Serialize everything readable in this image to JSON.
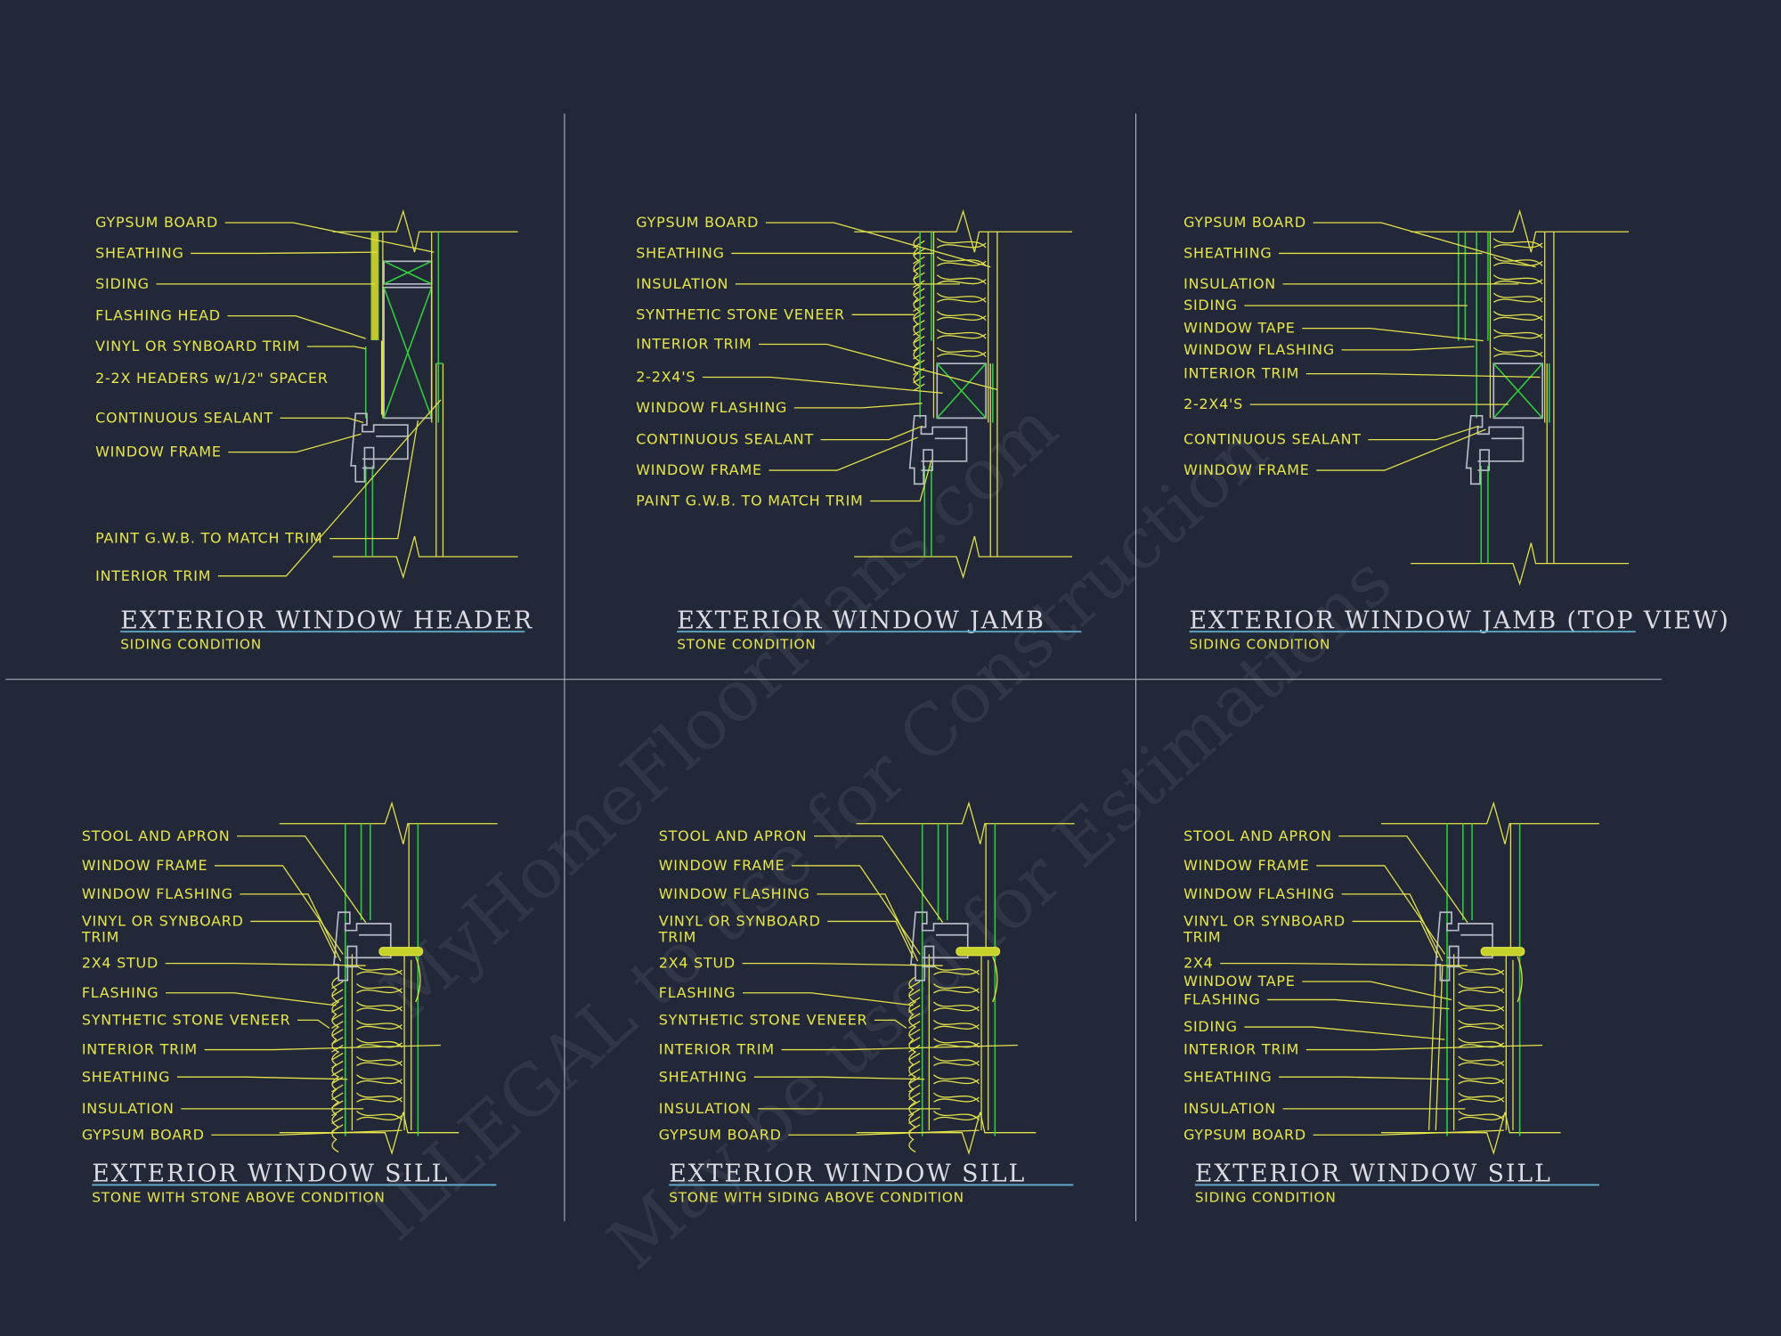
{
  "colors": {
    "background": "#232839",
    "annotation": "#e6e64a",
    "title": "#dcdce4",
    "frame_green": "#2fd13a",
    "window_frame": "#b8bcc8",
    "title_underline": "#5fa8c8"
  },
  "watermark": [
    "MyHomeFloorPlans.com",
    "ILLEGAL to use for Construction",
    "May be used for Estimations"
  ],
  "details": [
    {
      "title": "EXTERIOR WINDOW HEADER",
      "subtitle": "SIDING CONDITION",
      "labels": [
        "GYPSUM BOARD",
        "SHEATHING",
        "SIDING",
        "FLASHING HEAD",
        "VINYL OR SYNBOARD TRIM",
        "2-2X HEADERS w/1/2\" SPACER",
        "CONTINUOUS SEALANT",
        "WINDOW FRAME",
        "PAINT G.W.B. TO MATCH TRIM",
        "INTERIOR TRIM"
      ]
    },
    {
      "title": "EXTERIOR WINDOW JAMB",
      "subtitle": "STONE CONDITION",
      "labels": [
        "GYPSUM BOARD",
        "SHEATHING",
        "INSULATION",
        "SYNTHETIC STONE VENEER",
        "INTERIOR TRIM",
        "2-2X4'S",
        "WINDOW FLASHING",
        "CONTINUOUS SEALANT",
        "WINDOW FRAME",
        "PAINT G.W.B. TO MATCH TRIM"
      ]
    },
    {
      "title": "EXTERIOR WINDOW JAMB (TOP VIEW)",
      "subtitle": "SIDING CONDITION",
      "labels": [
        "GYPSUM BOARD",
        "SHEATHING",
        "INSULATION",
        "SIDING",
        "WINDOW TAPE",
        "WINDOW FLASHING",
        "INTERIOR TRIM",
        "2-2X4'S",
        "CONTINUOUS SEALANT",
        "WINDOW FRAME"
      ]
    },
    {
      "title": "EXTERIOR WINDOW SILL",
      "subtitle": "STONE WITH STONE ABOVE CONDITION",
      "labels": [
        "STOOL AND APRON",
        "WINDOW FRAME",
        "WINDOW FLASHING",
        "VINYL OR SYNBOARD",
        "TRIM",
        "2X4 STUD",
        "FLASHING",
        "SYNTHETIC STONE VENEER",
        "INTERIOR TRIM",
        "SHEATHING",
        "INSULATION",
        "GYPSUM BOARD"
      ]
    },
    {
      "title": "EXTERIOR WINDOW SILL",
      "subtitle": "STONE WITH SIDING ABOVE CONDITION",
      "labels": [
        "STOOL AND APRON",
        "WINDOW FRAME",
        "WINDOW FLASHING",
        "VINYL OR SYNBOARD",
        "TRIM",
        "2X4 STUD",
        "FLASHING",
        "SYNTHETIC STONE VENEER",
        "INTERIOR TRIM",
        "SHEATHING",
        "INSULATION",
        "GYPSUM BOARD"
      ]
    },
    {
      "title": "EXTERIOR WINDOW SILL",
      "subtitle": "SIDING CONDITION",
      "labels": [
        "STOOL AND APRON",
        "WINDOW FRAME",
        "WINDOW FLASHING",
        "VINYL OR SYNBOARD",
        "TRIM",
        "2X4",
        "WINDOW TAPE",
        "FLASHING",
        "SIDING",
        "INTERIOR TRIM",
        "SHEATHING",
        "INSULATION",
        "GYPSUM BOARD"
      ]
    }
  ]
}
